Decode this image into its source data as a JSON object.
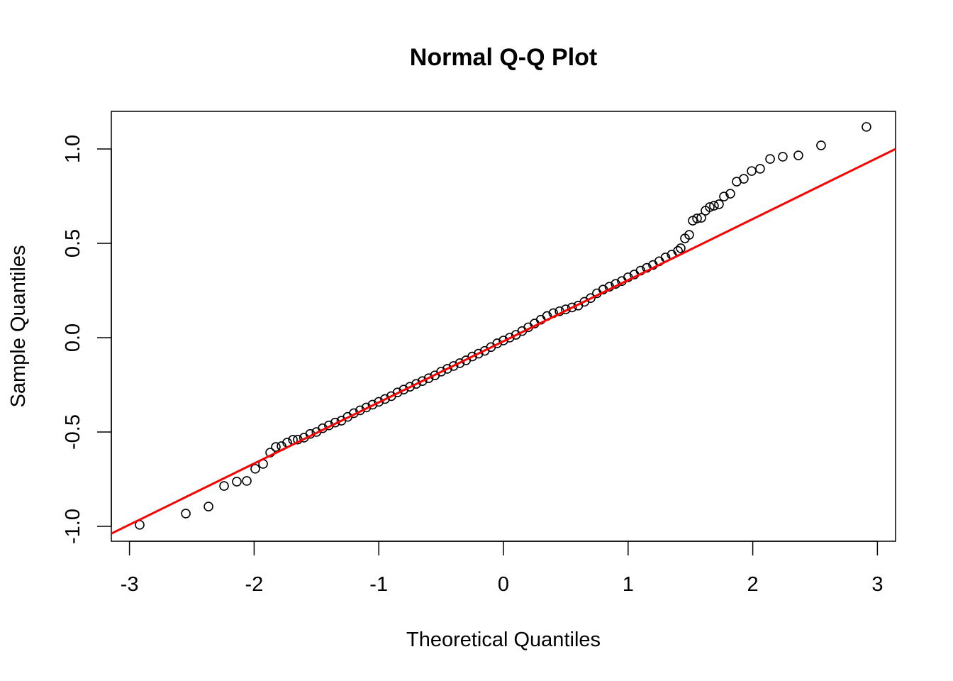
{
  "chart_data": {
    "type": "scatter",
    "title": "Normal Q-Q Plot",
    "xlabel": "Theoretical Quantiles",
    "ylabel": "Sample Quantiles",
    "xlim": [
      -3.146,
      3.146
    ],
    "ylim": [
      -1.07,
      1.2
    ],
    "x_ticks": [
      -3,
      -2,
      -1,
      0,
      1,
      2,
      3
    ],
    "x_tick_labels": [
      "-3",
      "-2",
      "-1",
      "0",
      "1",
      "2",
      "3"
    ],
    "y_ticks": [
      -1.0,
      -0.5,
      0.0,
      0.5,
      1.0
    ],
    "y_tick_labels": [
      "-1.0",
      "-0.5",
      "0.0",
      "0.5",
      "1.0"
    ],
    "grid": false,
    "point_color": "#000000",
    "line_color": "#ff0000",
    "reference_line": {
      "intercept": -0.019,
      "slope": 0.324
    },
    "points": {
      "x": [
        -2.918,
        -2.548,
        -2.366,
        -2.241,
        -2.139,
        -2.059,
        -1.991,
        -1.928,
        -1.871,
        -1.826,
        -1.78,
        -1.735,
        -1.689,
        -1.65,
        -1.6,
        -1.55,
        -1.5,
        -1.45,
        -1.4,
        -1.35,
        -1.3,
        -1.25,
        -1.2,
        -1.15,
        -1.1,
        -1.05,
        -1.0,
        -0.95,
        -0.9,
        -0.85,
        -0.8,
        -0.75,
        -0.7,
        -0.65,
        -0.6,
        -0.55,
        -0.5,
        -0.45,
        -0.4,
        -0.35,
        -0.3,
        -0.25,
        -0.2,
        -0.15,
        -0.1,
        -0.05,
        0.0,
        0.05,
        0.1,
        0.15,
        0.2,
        0.25,
        0.3,
        0.35,
        0.4,
        0.45,
        0.5,
        0.55,
        0.6,
        0.65,
        0.7,
        0.75,
        0.8,
        0.85,
        0.9,
        0.95,
        1.0,
        1.05,
        1.1,
        1.15,
        1.2,
        1.25,
        1.3,
        1.35,
        1.4,
        1.422,
        1.456,
        1.49,
        1.519,
        1.553,
        1.587,
        1.621,
        1.655,
        1.689,
        1.729,
        1.769,
        1.82,
        1.871,
        1.928,
        1.991,
        2.059,
        2.139,
        2.241,
        2.366,
        2.548,
        2.912
      ],
      "y": [
        -0.992,
        -0.932,
        -0.895,
        -0.786,
        -0.763,
        -0.759,
        -0.695,
        -0.669,
        -0.609,
        -0.579,
        -0.575,
        -0.556,
        -0.541,
        -0.54,
        -0.53,
        -0.51,
        -0.5,
        -0.48,
        -0.465,
        -0.45,
        -0.44,
        -0.42,
        -0.4,
        -0.385,
        -0.37,
        -0.355,
        -0.34,
        -0.325,
        -0.31,
        -0.29,
        -0.275,
        -0.26,
        -0.245,
        -0.23,
        -0.215,
        -0.2,
        -0.18,
        -0.165,
        -0.15,
        -0.135,
        -0.12,
        -0.1,
        -0.085,
        -0.07,
        -0.05,
        -0.03,
        -0.015,
        0.0,
        0.015,
        0.035,
        0.055,
        0.075,
        0.095,
        0.115,
        0.13,
        0.14,
        0.15,
        0.16,
        0.17,
        0.19,
        0.21,
        0.235,
        0.255,
        0.27,
        0.285,
        0.3,
        0.32,
        0.335,
        0.355,
        0.37,
        0.385,
        0.405,
        0.425,
        0.44,
        0.46,
        0.474,
        0.526,
        0.545,
        0.62,
        0.632,
        0.635,
        0.673,
        0.692,
        0.699,
        0.707,
        0.748,
        0.763,
        0.827,
        0.842,
        0.883,
        0.895,
        0.947,
        0.959,
        0.966,
        1.019,
        1.117
      ]
    }
  }
}
